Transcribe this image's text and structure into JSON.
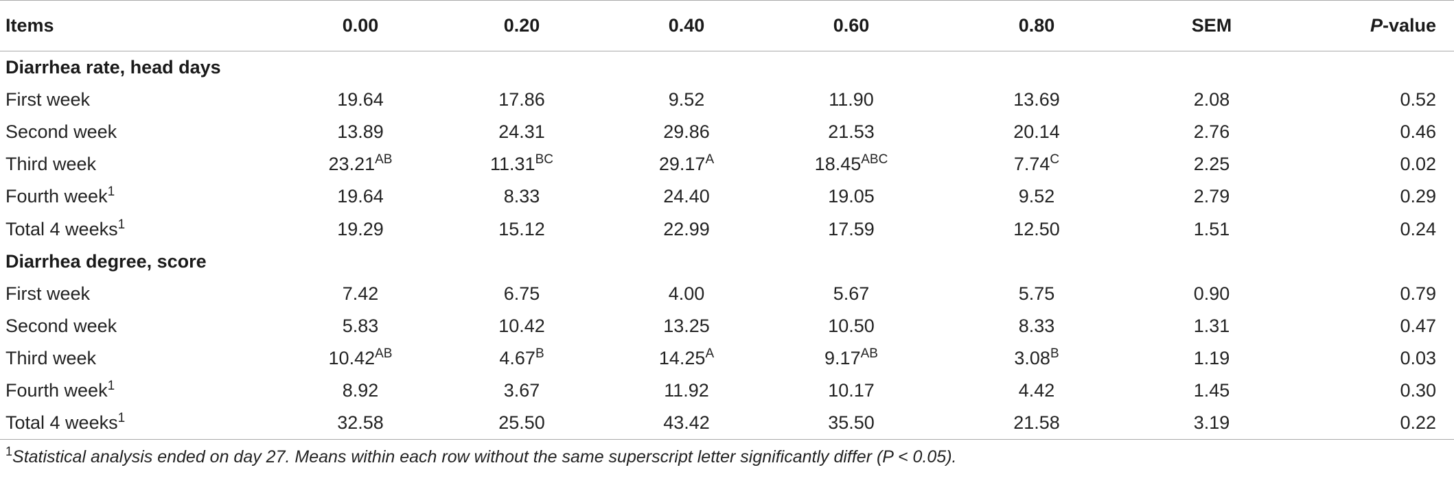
{
  "table": {
    "headers": [
      "Items",
      "0.00",
      "0.20",
      "0.40",
      "0.60",
      "0.80",
      "SEM",
      "P-value"
    ],
    "header_pvalue": {
      "italic": "P",
      "rest": "-value"
    },
    "sections": [
      {
        "title": "Diarrhea rate, head days",
        "rows": [
          {
            "label": "First week",
            "label_sup": "",
            "cells": [
              {
                "v": "19.64",
                "s": ""
              },
              {
                "v": "17.86",
                "s": ""
              },
              {
                "v": "9.52",
                "s": ""
              },
              {
                "v": "11.90",
                "s": ""
              },
              {
                "v": "13.69",
                "s": ""
              }
            ],
            "sem": "2.08",
            "p": "0.52"
          },
          {
            "label": "Second week",
            "label_sup": "",
            "cells": [
              {
                "v": "13.89",
                "s": ""
              },
              {
                "v": "24.31",
                "s": ""
              },
              {
                "v": "29.86",
                "s": ""
              },
              {
                "v": "21.53",
                "s": ""
              },
              {
                "v": "20.14",
                "s": ""
              }
            ],
            "sem": "2.76",
            "p": "0.46"
          },
          {
            "label": "Third week",
            "label_sup": "",
            "cells": [
              {
                "v": "23.21",
                "s": "AB"
              },
              {
                "v": "11.31",
                "s": "BC"
              },
              {
                "v": "29.17",
                "s": "A"
              },
              {
                "v": "18.45",
                "s": "ABC"
              },
              {
                "v": "7.74",
                "s": "C"
              }
            ],
            "sem": "2.25",
            "p": "0.02"
          },
          {
            "label": "Fourth week",
            "label_sup": "1",
            "cells": [
              {
                "v": "19.64",
                "s": ""
              },
              {
                "v": "8.33",
                "s": ""
              },
              {
                "v": "24.40",
                "s": ""
              },
              {
                "v": "19.05",
                "s": ""
              },
              {
                "v": "9.52",
                "s": ""
              }
            ],
            "sem": "2.79",
            "p": "0.29"
          },
          {
            "label": "Total 4 weeks",
            "label_sup": "1",
            "cells": [
              {
                "v": "19.29",
                "s": ""
              },
              {
                "v": "15.12",
                "s": ""
              },
              {
                "v": "22.99",
                "s": ""
              },
              {
                "v": "17.59",
                "s": ""
              },
              {
                "v": "12.50",
                "s": ""
              }
            ],
            "sem": "1.51",
            "p": "0.24"
          }
        ]
      },
      {
        "title": "Diarrhea degree, score",
        "rows": [
          {
            "label": "First week",
            "label_sup": "",
            "cells": [
              {
                "v": "7.42",
                "s": ""
              },
              {
                "v": "6.75",
                "s": ""
              },
              {
                "v": "4.00",
                "s": ""
              },
              {
                "v": "5.67",
                "s": ""
              },
              {
                "v": "5.75",
                "s": ""
              }
            ],
            "sem": "0.90",
            "p": "0.79"
          },
          {
            "label": "Second week",
            "label_sup": "",
            "cells": [
              {
                "v": "5.83",
                "s": ""
              },
              {
                "v": "10.42",
                "s": ""
              },
              {
                "v": "13.25",
                "s": ""
              },
              {
                "v": "10.50",
                "s": ""
              },
              {
                "v": "8.33",
                "s": ""
              }
            ],
            "sem": "1.31",
            "p": "0.47"
          },
          {
            "label": "Third week",
            "label_sup": "",
            "cells": [
              {
                "v": "10.42",
                "s": "AB"
              },
              {
                "v": "4.67",
                "s": "B"
              },
              {
                "v": "14.25",
                "s": "A"
              },
              {
                "v": "9.17",
                "s": "AB"
              },
              {
                "v": "3.08",
                "s": "B"
              }
            ],
            "sem": "1.19",
            "p": "0.03"
          },
          {
            "label": "Fourth week",
            "label_sup": "1",
            "cells": [
              {
                "v": "8.92",
                "s": ""
              },
              {
                "v": "3.67",
                "s": ""
              },
              {
                "v": "11.92",
                "s": ""
              },
              {
                "v": "10.17",
                "s": ""
              },
              {
                "v": "4.42",
                "s": ""
              }
            ],
            "sem": "1.45",
            "p": "0.30"
          },
          {
            "label": "Total 4 weeks",
            "label_sup": "1",
            "cells": [
              {
                "v": "32.58",
                "s": ""
              },
              {
                "v": "25.50",
                "s": ""
              },
              {
                "v": "43.42",
                "s": ""
              },
              {
                "v": "35.50",
                "s": ""
              },
              {
                "v": "21.58",
                "s": ""
              }
            ],
            "sem": "3.19",
            "p": "0.22"
          }
        ]
      }
    ]
  },
  "footnote": {
    "marker": "1",
    "text": "Statistical analysis ended on day 27. Means within each row without the same superscript letter significantly differ (P < 0.05)."
  }
}
